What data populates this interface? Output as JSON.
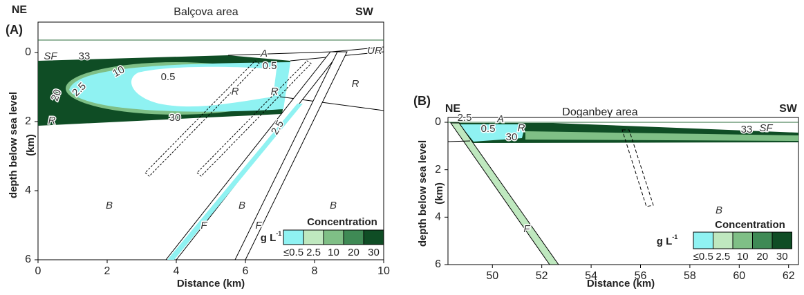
{
  "panels": [
    {
      "label": "(A)",
      "title": "Balçova area",
      "left_label": "NE",
      "right_label": "SW",
      "xlabel": "Distance (km)",
      "ylabel": [
        "depth below sea level",
        "(km)"
      ],
      "xlim": [
        0,
        10
      ],
      "xticks": [
        0,
        2,
        4,
        6,
        8,
        10
      ],
      "ylim": [
        0,
        6
      ],
      "yticks": [
        0,
        2,
        4,
        6
      ],
      "contour_labels": [
        "33",
        "10",
        "0.5",
        "2.5",
        "20",
        "30",
        "0.5",
        "2.5"
      ],
      "unit_labels": [
        "SF",
        "A",
        "UR",
        "R",
        "R",
        "R",
        "R",
        "B",
        "B",
        "B",
        "F",
        "F"
      ],
      "legend": {
        "title": "Concentration",
        "unit": "g L",
        "unit_exp": "-1",
        "items": [
          {
            "label": "≤0.5",
            "color": "#8ff2f2"
          },
          {
            "label": "2.5",
            "color": "#bfe8bf"
          },
          {
            "label": "10",
            "color": "#7fbf86"
          },
          {
            "label": "20",
            "color": "#3f8a55"
          },
          {
            "label": "30",
            "color": "#0f4d25"
          }
        ]
      }
    },
    {
      "label": "(B)",
      "title": "Doganbey area",
      "left_label": "NE",
      "right_label": "SW",
      "xlabel": "Distance (km)",
      "ylabel": [
        "depth below sea level",
        "(km)"
      ],
      "xlim": [
        48.2,
        62.4
      ],
      "xticks": [
        50,
        52,
        54,
        56,
        58,
        60,
        62
      ],
      "ylim": [
        0,
        6
      ],
      "yticks": [
        0,
        2,
        4,
        6
      ],
      "contour_labels": [
        "2.5",
        "0.5",
        "30",
        "33"
      ],
      "unit_labels": [
        "A",
        "R",
        "SF",
        "B",
        "F"
      ],
      "legend": {
        "title": "Concentration",
        "unit": "g L",
        "unit_exp": "-1",
        "items": [
          {
            "label": "≤0.5",
            "color": "#8ff2f2"
          },
          {
            "label": "2.5",
            "color": "#bfe8bf"
          },
          {
            "label": "10",
            "color": "#7fbf86"
          },
          {
            "label": "20",
            "color": "#3f8a55"
          },
          {
            "label": "30",
            "color": "#0f4d25"
          }
        ]
      }
    }
  ]
}
